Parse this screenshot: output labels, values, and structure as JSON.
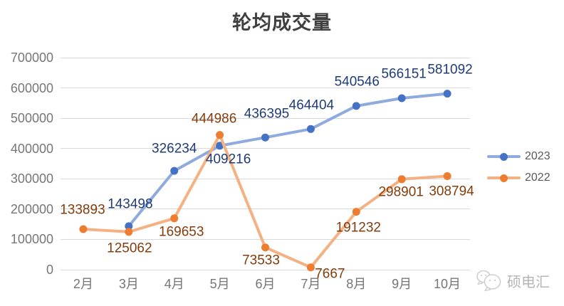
{
  "chart_data": {
    "type": "line",
    "title": "轮均成交量",
    "categories": [
      "2月",
      "3月",
      "4月",
      "5月",
      "6月",
      "7月",
      "8月",
      "9月",
      "10月"
    ],
    "ylim": [
      0,
      700000
    ],
    "y_step": 100000,
    "grid": true,
    "legend_position": "right",
    "series": [
      {
        "name": "2023",
        "line_color": "#8FAADC",
        "marker_color": "#4472C4",
        "label_color": "#1F3C78",
        "points": [
          {
            "category": "3月",
            "value": 143498,
            "label_dx": 2,
            "label_dy": -31
          },
          {
            "category": "4月",
            "value": 326234,
            "label_dx": 0,
            "label_dy": -31
          },
          {
            "category": "5月",
            "value": 409216,
            "label_dx": 12,
            "label_dy": 19
          },
          {
            "category": "6月",
            "value": 436395,
            "label_dx": 2,
            "label_dy": -33
          },
          {
            "category": "7月",
            "value": 464404,
            "label_dx": 1,
            "label_dy": -33
          },
          {
            "category": "8月",
            "value": 540546,
            "label_dx": 1,
            "label_dy": -34
          },
          {
            "category": "9月",
            "value": 566151,
            "label_dx": 3,
            "label_dy": -34
          },
          {
            "category": "10月",
            "value": 581092,
            "label_dx": 4,
            "label_dy": -34
          }
        ]
      },
      {
        "name": "2022",
        "line_color": "#F4B183",
        "marker_color": "#ED7D31",
        "label_color": "#843C0C",
        "points": [
          {
            "category": "2月",
            "value": 133893,
            "label_dx": -1,
            "label_dy": -27
          },
          {
            "category": "3月",
            "value": 125062,
            "label_dx": 1,
            "label_dy": 23
          },
          {
            "category": "4月",
            "value": 169653,
            "label_dx": 10,
            "label_dy": 19
          },
          {
            "category": "5月",
            "value": 444986,
            "label_dx": -8,
            "label_dy": -23
          },
          {
            "category": "6月",
            "value": 73533,
            "label_dx": -6,
            "label_dy": 18
          },
          {
            "category": "7月",
            "value": 7667,
            "label_dx": 27,
            "label_dy": 9
          },
          {
            "category": "8月",
            "value": 191232,
            "label_dx": 3,
            "label_dy": 22
          },
          {
            "category": "9月",
            "value": 298901,
            "label_dx": -1,
            "label_dy": 18
          },
          {
            "category": "10月",
            "value": 308794,
            "label_dx": 6,
            "label_dy": 21
          }
        ]
      }
    ],
    "colors": {
      "grid": "#D9D9D9",
      "axis_text": "#767676",
      "title_text": "#3F3F3F",
      "legend_text": "#595959"
    }
  },
  "watermark": {
    "text": "硕电汇"
  }
}
